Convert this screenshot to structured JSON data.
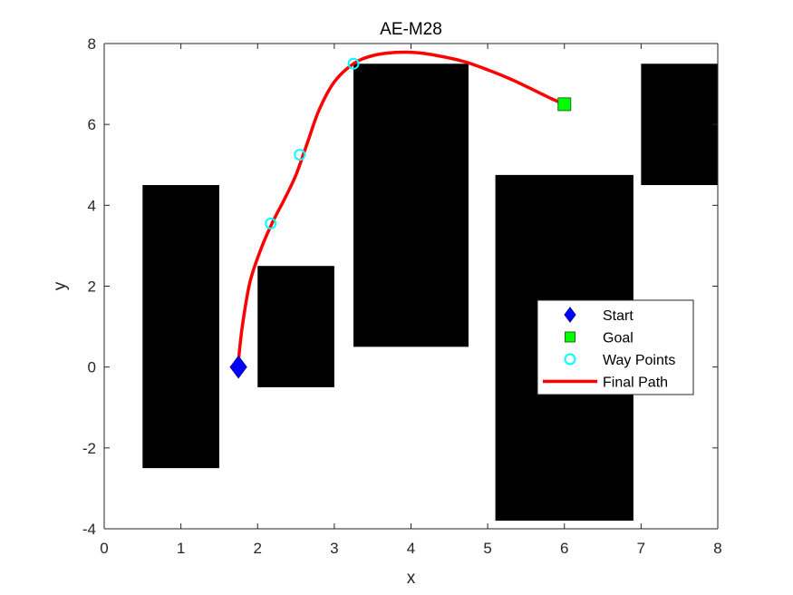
{
  "chart_data": {
    "type": "scatter",
    "title": "AE-M28",
    "xlabel": "x",
    "ylabel": "y",
    "xlim": [
      0,
      8
    ],
    "ylim": [
      -4,
      8
    ],
    "xticks": [
      "0",
      "1",
      "2",
      "3",
      "4",
      "5",
      "6",
      "7",
      "8"
    ],
    "yticks": [
      "-4",
      "-2",
      "0",
      "2",
      "4",
      "6",
      "8"
    ],
    "grid": false,
    "legend_position": "right",
    "obstacles": [
      {
        "x": [
          0.5,
          1.5
        ],
        "y": [
          -2.5,
          4.5
        ]
      },
      {
        "x": [
          2.0,
          3.0
        ],
        "y": [
          -0.5,
          2.5
        ]
      },
      {
        "x": [
          3.25,
          4.75
        ],
        "y": [
          0.5,
          7.5
        ]
      },
      {
        "x": [
          5.1,
          6.9
        ],
        "y": [
          -3.8,
          4.75
        ]
      },
      {
        "x": [
          7.0,
          8.0
        ],
        "y": [
          4.5,
          7.5
        ]
      }
    ],
    "series": [
      {
        "name": "Start",
        "marker": "diamond",
        "color": "#0000ff",
        "x": [
          1.75
        ],
        "y": [
          0.0
        ]
      },
      {
        "name": "Goal",
        "marker": "square",
        "color": "#00ff00",
        "x": [
          6.0
        ],
        "y": [
          6.5
        ]
      },
      {
        "name": "Way Points",
        "marker": "circle",
        "color": "#00ffff",
        "x": [
          2.17,
          2.55,
          3.25
        ],
        "y": [
          3.55,
          5.25,
          7.5
        ]
      },
      {
        "name": "Final Path",
        "marker": "line",
        "color": "#ff0000",
        "x": [
          1.75,
          1.8,
          1.9,
          2.05,
          2.2,
          2.35,
          2.5,
          2.65,
          2.8,
          3.0,
          3.25,
          3.5,
          3.8,
          4.1,
          4.4,
          4.7,
          5.0,
          5.3,
          5.6,
          5.85,
          6.0
        ],
        "y": [
          0.15,
          1.0,
          2.1,
          2.95,
          3.6,
          4.15,
          4.75,
          5.55,
          6.35,
          7.05,
          7.5,
          7.7,
          7.78,
          7.77,
          7.68,
          7.55,
          7.35,
          7.12,
          6.85,
          6.62,
          6.5
        ]
      }
    ]
  }
}
